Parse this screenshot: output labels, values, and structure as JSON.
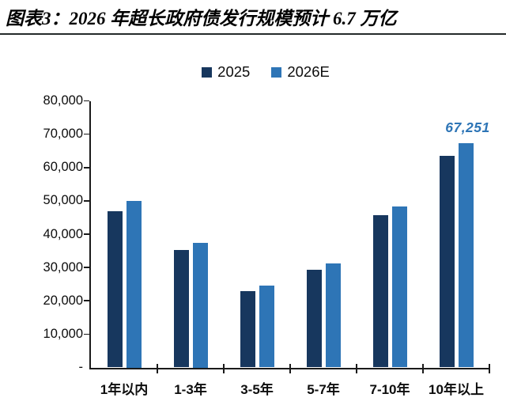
{
  "header": {
    "title": "图表3：2026 年超长政府债发行规模预计 6.7 万亿"
  },
  "colors": {
    "series_2025": "#17375E",
    "series_2026E": "#2E75B6",
    "axis": "#1a1a1a",
    "annotation_text": "#2E75B6",
    "title_text": "#000000"
  },
  "chart_data": {
    "type": "bar",
    "title": "图表3：2026 年超长政府债发行规模预计 6.7 万亿",
    "categories": [
      "1年以内",
      "1-3年",
      "3-5年",
      "5-7年",
      "7-10年",
      "10年以上"
    ],
    "series": [
      {
        "name": "2025",
        "color": "#17375E",
        "values": [
          47000,
          35200,
          23000,
          29300,
          45600,
          63400
        ]
      },
      {
        "name": "2026E",
        "color": "#2E75B6",
        "values": [
          50000,
          37500,
          24600,
          31200,
          48400,
          67251
        ]
      }
    ],
    "xlabel": "",
    "ylabel": "",
    "ylim": [
      0,
      80000
    ],
    "ytick_step": 10000,
    "ytick_labels": [
      "-",
      "10,000",
      "20,000",
      "30,000",
      "40,000",
      "50,000",
      "60,000",
      "70,000",
      "80,000"
    ],
    "grid": false,
    "legend_position": "top-center",
    "annotation": {
      "text": "67,251",
      "series": "2026E",
      "category": "10年以上",
      "color": "#2E75B6"
    }
  }
}
